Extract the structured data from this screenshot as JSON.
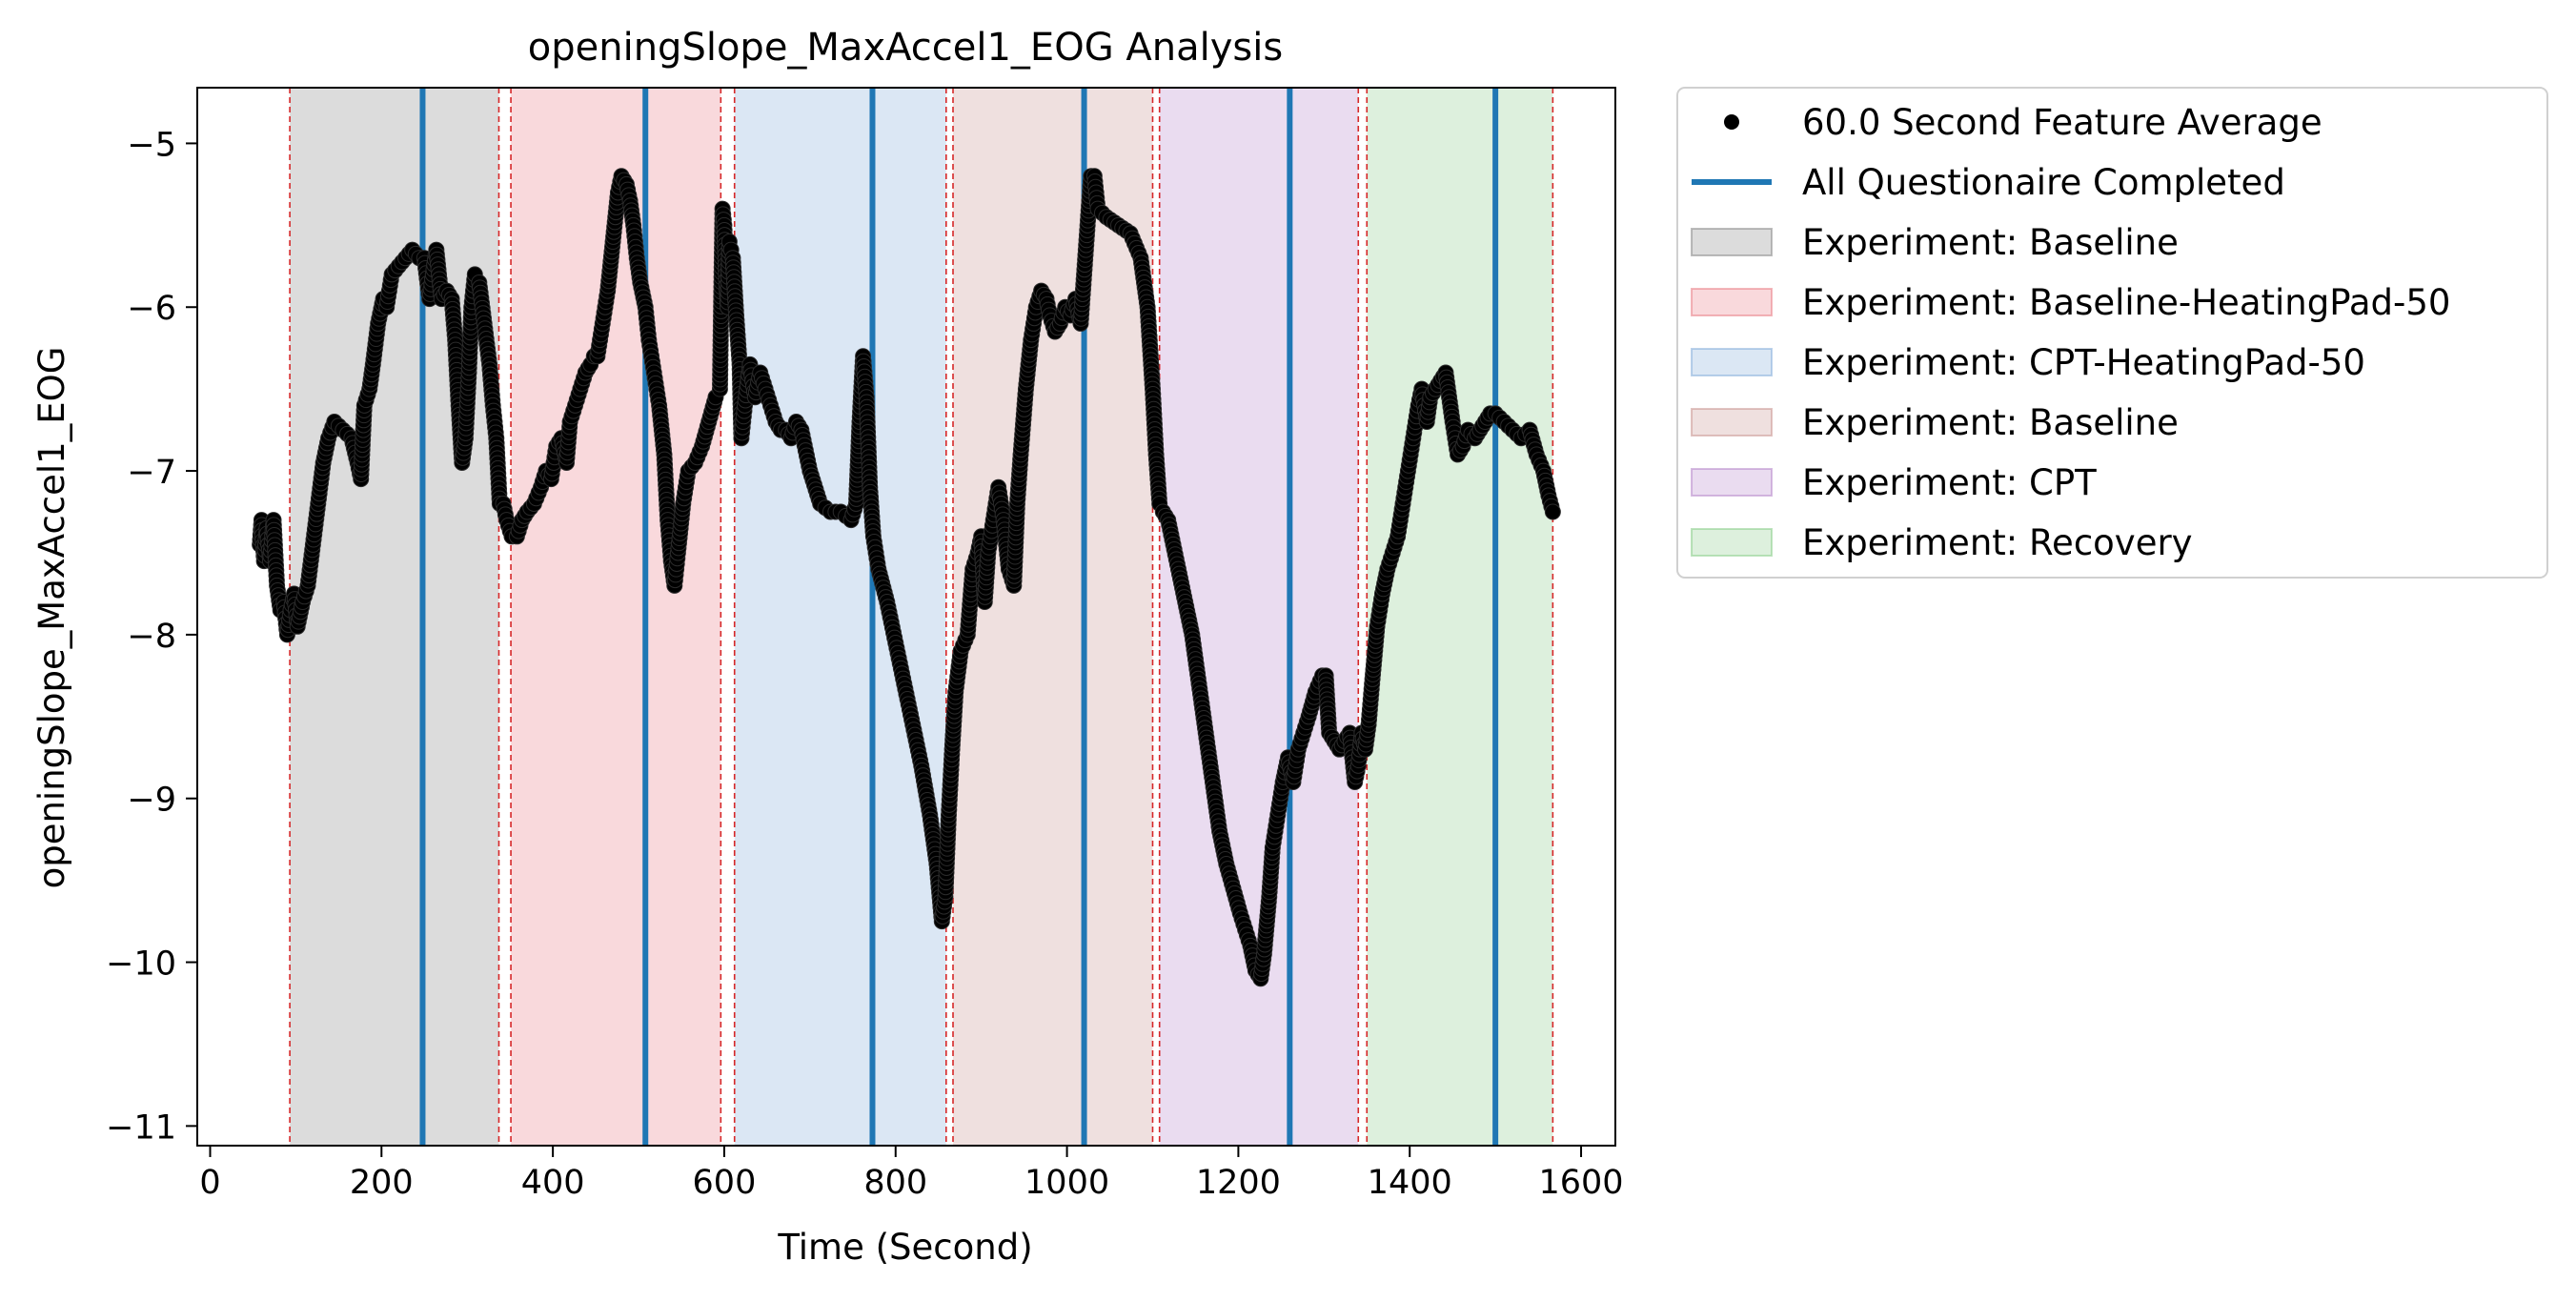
{
  "chart_data": {
    "type": "scatter",
    "title": "openingSlope_MaxAccel1_EOG Analysis",
    "xlabel": "Time (Second)",
    "ylabel": "openingSlope_MaxAccel1_EOG",
    "xlim": [
      -15,
      1640
    ],
    "ylim": [
      -11.12,
      -4.66
    ],
    "xticks": [
      0,
      200,
      400,
      600,
      800,
      1000,
      1200,
      1400,
      1600
    ],
    "yticks": [
      -5,
      -6,
      -7,
      -8,
      -9,
      -10,
      -11
    ],
    "xtick_labels": [
      "0",
      "200",
      "400",
      "600",
      "800",
      "1000",
      "1200",
      "1400",
      "1600"
    ],
    "ytick_labels": [
      "−5",
      "−6",
      "−7",
      "−8",
      "−9",
      "−10",
      "−11"
    ],
    "grid": false,
    "legend_position": "outside-right-top",
    "legend": [
      {
        "label": "60.0 Second Feature Average",
        "kind": "marker",
        "color": "#000000"
      },
      {
        "label": "All Questionaire Completed",
        "kind": "line",
        "color": "#1f77b4"
      },
      {
        "label": "Experiment: Baseline",
        "kind": "patch",
        "color": "#7f7f7f"
      },
      {
        "label": "Experiment: Baseline-HeatingPad-50",
        "kind": "patch",
        "color": "#e8747c"
      },
      {
        "label": "Experiment: CPT-HeatingPad-50",
        "kind": "patch",
        "color": "#7ba7d7"
      },
      {
        "label": "Experiment: Baseline",
        "kind": "patch",
        "color": "#c58c87"
      },
      {
        "label": "Experiment: CPT",
        "kind": "patch",
        "color": "#b07cc6"
      },
      {
        "label": "Experiment: Recovery",
        "kind": "patch",
        "color": "#80c980"
      }
    ],
    "regions": [
      {
        "start": 93,
        "end": 337,
        "color": "#7f7f7f"
      },
      {
        "start": 351,
        "end": 596,
        "color": "#e8747c"
      },
      {
        "start": 612,
        "end": 859,
        "color": "#7ba7d7"
      },
      {
        "start": 867,
        "end": 1100,
        "color": "#c58c87"
      },
      {
        "start": 1108,
        "end": 1340,
        "color": "#b07cc6"
      },
      {
        "start": 1350,
        "end": 1567,
        "color": "#80c980"
      }
    ],
    "region_boundaries": [
      93,
      337,
      351,
      596,
      612,
      859,
      867,
      1100,
      1108,
      1340,
      1350,
      1567
    ],
    "questionnaire_lines": [
      248,
      508,
      773,
      1020,
      1260,
      1500
    ],
    "series": [
      {
        "name": "60.0 Second Feature Average",
        "color": "#000000",
        "points": [
          [
            58,
            -7.45
          ],
          [
            60,
            -7.3
          ],
          [
            63,
            -7.55
          ],
          [
            66,
            -7.35
          ],
          [
            70,
            -7.55
          ],
          [
            74,
            -7.3
          ],
          [
            78,
            -7.7
          ],
          [
            82,
            -7.85
          ],
          [
            86,
            -7.8
          ],
          [
            90,
            -8.0
          ],
          [
            94,
            -7.85
          ],
          [
            98,
            -7.75
          ],
          [
            102,
            -7.95
          ],
          [
            108,
            -7.8
          ],
          [
            114,
            -7.7
          ],
          [
            120,
            -7.45
          ],
          [
            126,
            -7.2
          ],
          [
            132,
            -6.95
          ],
          [
            138,
            -6.8
          ],
          [
            145,
            -6.7
          ],
          [
            155,
            -6.75
          ],
          [
            165,
            -6.8
          ],
          [
            172,
            -6.95
          ],
          [
            176,
            -7.05
          ],
          [
            180,
            -6.6
          ],
          [
            186,
            -6.5
          ],
          [
            190,
            -6.35
          ],
          [
            196,
            -6.1
          ],
          [
            202,
            -5.95
          ],
          [
            206,
            -6.0
          ],
          [
            212,
            -5.8
          ],
          [
            220,
            -5.75
          ],
          [
            228,
            -5.7
          ],
          [
            236,
            -5.65
          ],
          [
            244,
            -5.7
          ],
          [
            250,
            -5.7
          ],
          [
            256,
            -5.95
          ],
          [
            264,
            -5.65
          ],
          [
            270,
            -5.95
          ],
          [
            276,
            -5.9
          ],
          [
            282,
            -5.95
          ],
          [
            286,
            -6.2
          ],
          [
            290,
            -6.6
          ],
          [
            294,
            -6.95
          ],
          [
            298,
            -6.8
          ],
          [
            302,
            -6.4
          ],
          [
            305,
            -6.0
          ],
          [
            309,
            -5.8
          ],
          [
            314,
            -5.85
          ],
          [
            320,
            -6.1
          ],
          [
            326,
            -6.35
          ],
          [
            330,
            -6.6
          ],
          [
            334,
            -6.8
          ],
          [
            338,
            -7.2
          ],
          [
            342,
            -7.2
          ],
          [
            346,
            -7.3
          ],
          [
            352,
            -7.4
          ],
          [
            358,
            -7.4
          ],
          [
            364,
            -7.3
          ],
          [
            370,
            -7.25
          ],
          [
            378,
            -7.2
          ],
          [
            386,
            -7.1
          ],
          [
            392,
            -7.0
          ],
          [
            398,
            -7.05
          ],
          [
            404,
            -6.85
          ],
          [
            410,
            -6.8
          ],
          [
            416,
            -6.95
          ],
          [
            420,
            -6.7
          ],
          [
            426,
            -6.6
          ],
          [
            432,
            -6.5
          ],
          [
            438,
            -6.4
          ],
          [
            444,
            -6.35
          ],
          [
            448,
            -6.3
          ],
          [
            452,
            -6.3
          ],
          [
            458,
            -6.1
          ],
          [
            464,
            -5.9
          ],
          [
            470,
            -5.6
          ],
          [
            476,
            -5.3
          ],
          [
            480,
            -5.2
          ],
          [
            486,
            -5.25
          ],
          [
            490,
            -5.35
          ],
          [
            494,
            -5.5
          ],
          [
            498,
            -5.7
          ],
          [
            502,
            -5.85
          ],
          [
            508,
            -6.0
          ],
          [
            512,
            -6.2
          ],
          [
            518,
            -6.4
          ],
          [
            524,
            -6.6
          ],
          [
            530,
            -6.9
          ],
          [
            534,
            -7.3
          ],
          [
            538,
            -7.55
          ],
          [
            542,
            -7.7
          ],
          [
            546,
            -7.5
          ],
          [
            552,
            -7.2
          ],
          [
            558,
            -7.0
          ],
          [
            566,
            -6.95
          ],
          [
            574,
            -6.85
          ],
          [
            582,
            -6.7
          ],
          [
            590,
            -6.55
          ],
          [
            595,
            -6.5
          ],
          [
            598,
            -5.4
          ],
          [
            600,
            -5.5
          ],
          [
            602,
            -5.8
          ],
          [
            604,
            -6.0
          ],
          [
            606,
            -5.6
          ],
          [
            608,
            -5.65
          ],
          [
            610,
            -5.7
          ],
          [
            614,
            -6.05
          ],
          [
            618,
            -6.35
          ],
          [
            620,
            -6.8
          ],
          [
            624,
            -6.6
          ],
          [
            630,
            -6.35
          ],
          [
            636,
            -6.55
          ],
          [
            642,
            -6.4
          ],
          [
            648,
            -6.5
          ],
          [
            654,
            -6.6
          ],
          [
            660,
            -6.7
          ],
          [
            666,
            -6.75
          ],
          [
            672,
            -6.75
          ],
          [
            678,
            -6.8
          ],
          [
            684,
            -6.7
          ],
          [
            690,
            -6.75
          ],
          [
            700,
            -7.0
          ],
          [
            712,
            -7.2
          ],
          [
            724,
            -7.25
          ],
          [
            736,
            -7.25
          ],
          [
            748,
            -7.3
          ],
          [
            754,
            -7.2
          ],
          [
            758,
            -6.7
          ],
          [
            762,
            -6.3
          ],
          [
            766,
            -6.55
          ],
          [
            770,
            -7.1
          ],
          [
            774,
            -7.4
          ],
          [
            780,
            -7.6
          ],
          [
            790,
            -7.8
          ],
          [
            800,
            -8.05
          ],
          [
            810,
            -8.3
          ],
          [
            820,
            -8.55
          ],
          [
            830,
            -8.8
          ],
          [
            840,
            -9.1
          ],
          [
            848,
            -9.4
          ],
          [
            854,
            -9.75
          ],
          [
            858,
            -9.6
          ],
          [
            862,
            -9.1
          ],
          [
            866,
            -8.7
          ],
          [
            870,
            -8.35
          ],
          [
            876,
            -8.1
          ],
          [
            884,
            -8.0
          ],
          [
            890,
            -7.6
          ],
          [
            896,
            -7.5
          ],
          [
            900,
            -7.4
          ],
          [
            904,
            -7.8
          ],
          [
            908,
            -7.5
          ],
          [
            914,
            -7.3
          ],
          [
            920,
            -7.1
          ],
          [
            926,
            -7.3
          ],
          [
            932,
            -7.6
          ],
          [
            938,
            -7.7
          ],
          [
            942,
            -7.2
          ],
          [
            946,
            -6.9
          ],
          [
            952,
            -6.5
          ],
          [
            958,
            -6.2
          ],
          [
            964,
            -6.0
          ],
          [
            970,
            -5.9
          ],
          [
            976,
            -5.95
          ],
          [
            980,
            -6.05
          ],
          [
            986,
            -6.15
          ],
          [
            992,
            -6.1
          ],
          [
            998,
            -6.0
          ],
          [
            1004,
            -6.05
          ],
          [
            1010,
            -5.95
          ],
          [
            1016,
            -6.1
          ],
          [
            1020,
            -5.8
          ],
          [
            1024,
            -5.5
          ],
          [
            1028,
            -5.2
          ],
          [
            1032,
            -5.2
          ],
          [
            1036,
            -5.4
          ],
          [
            1046,
            -5.45
          ],
          [
            1060,
            -5.5
          ],
          [
            1074,
            -5.55
          ],
          [
            1086,
            -5.7
          ],
          [
            1094,
            -6.0
          ],
          [
            1100,
            -6.5
          ],
          [
            1104,
            -6.9
          ],
          [
            1108,
            -7.2
          ],
          [
            1112,
            -7.25
          ],
          [
            1118,
            -7.3
          ],
          [
            1124,
            -7.45
          ],
          [
            1130,
            -7.6
          ],
          [
            1138,
            -7.8
          ],
          [
            1146,
            -8.0
          ],
          [
            1154,
            -8.3
          ],
          [
            1162,
            -8.6
          ],
          [
            1170,
            -8.9
          ],
          [
            1178,
            -9.2
          ],
          [
            1186,
            -9.4
          ],
          [
            1194,
            -9.55
          ],
          [
            1202,
            -9.7
          ],
          [
            1208,
            -9.8
          ],
          [
            1214,
            -9.9
          ],
          [
            1220,
            -10.05
          ],
          [
            1226,
            -10.1
          ],
          [
            1230,
            -9.95
          ],
          [
            1236,
            -9.6
          ],
          [
            1240,
            -9.3
          ],
          [
            1246,
            -9.1
          ],
          [
            1252,
            -8.9
          ],
          [
            1258,
            -8.75
          ],
          [
            1264,
            -8.9
          ],
          [
            1270,
            -8.7
          ],
          [
            1276,
            -8.6
          ],
          [
            1282,
            -8.5
          ],
          [
            1290,
            -8.35
          ],
          [
            1298,
            -8.25
          ],
          [
            1302,
            -8.25
          ],
          [
            1306,
            -8.6
          ],
          [
            1312,
            -8.65
          ],
          [
            1318,
            -8.7
          ],
          [
            1324,
            -8.65
          ],
          [
            1330,
            -8.6
          ],
          [
            1336,
            -8.9
          ],
          [
            1340,
            -8.8
          ],
          [
            1344,
            -8.6
          ],
          [
            1348,
            -8.7
          ],
          [
            1352,
            -8.55
          ],
          [
            1356,
            -8.3
          ],
          [
            1362,
            -7.95
          ],
          [
            1368,
            -7.75
          ],
          [
            1374,
            -7.6
          ],
          [
            1380,
            -7.5
          ],
          [
            1386,
            -7.4
          ],
          [
            1392,
            -7.2
          ],
          [
            1398,
            -7.0
          ],
          [
            1404,
            -6.8
          ],
          [
            1410,
            -6.6
          ],
          [
            1414,
            -6.5
          ],
          [
            1420,
            -6.7
          ],
          [
            1424,
            -6.55
          ],
          [
            1430,
            -6.5
          ],
          [
            1436,
            -6.45
          ],
          [
            1442,
            -6.4
          ],
          [
            1446,
            -6.55
          ],
          [
            1450,
            -6.7
          ],
          [
            1456,
            -6.9
          ],
          [
            1462,
            -6.85
          ],
          [
            1468,
            -6.75
          ],
          [
            1476,
            -6.8
          ],
          [
            1482,
            -6.75
          ],
          [
            1488,
            -6.7
          ],
          [
            1494,
            -6.65
          ],
          [
            1500,
            -6.65
          ],
          [
            1510,
            -6.7
          ],
          [
            1520,
            -6.75
          ],
          [
            1530,
            -6.8
          ],
          [
            1540,
            -6.75
          ],
          [
            1548,
            -6.9
          ],
          [
            1556,
            -7.0
          ],
          [
            1562,
            -7.15
          ],
          [
            1567,
            -7.25
          ]
        ]
      }
    ]
  }
}
